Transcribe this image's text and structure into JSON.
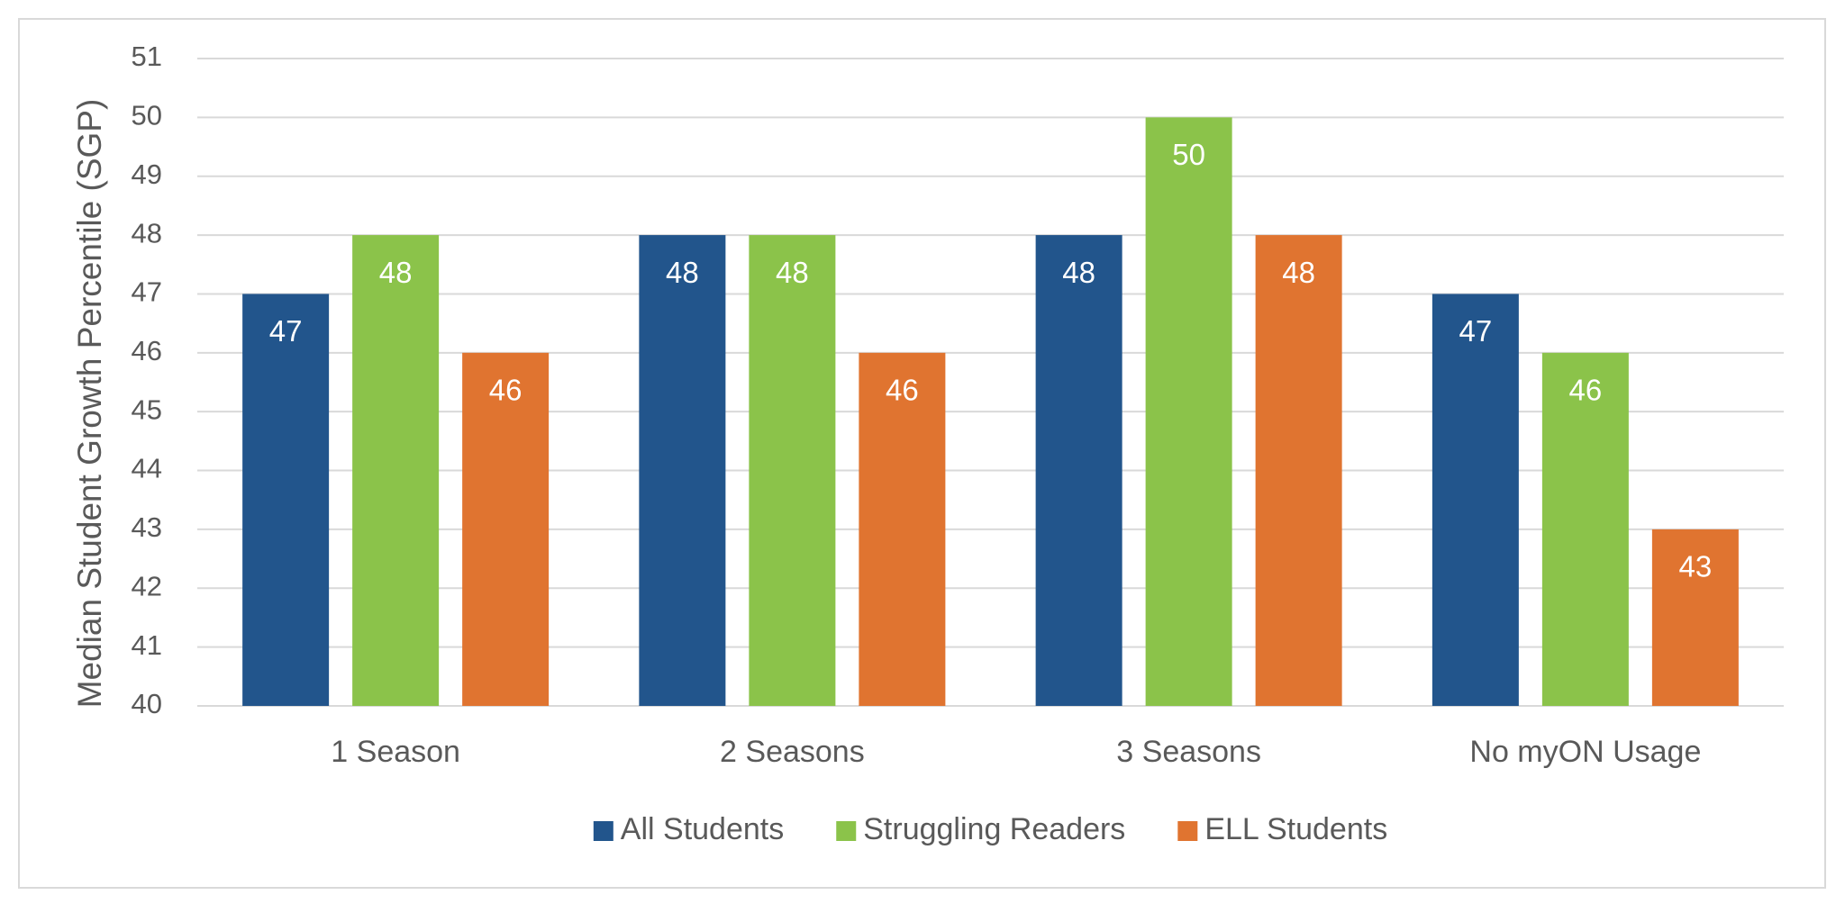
{
  "chart_data": {
    "type": "bar",
    "y_label": "Median Student Growth Percentile (SGP)",
    "categories": [
      "1 Season",
      "2 Seasons",
      "3 Seasons",
      "No myON Usage"
    ],
    "series": [
      {
        "name": "All Students",
        "color": "#22558c",
        "values": [
          47,
          48,
          48,
          47
        ]
      },
      {
        "name": "Struggling Readers",
        "color": "#8bc34a",
        "values": [
          48,
          48,
          50,
          46
        ]
      },
      {
        "name": "ELL Students",
        "color": "#e07430",
        "values": [
          46,
          46,
          48,
          43
        ]
      }
    ],
    "ylim": [
      40,
      51
    ],
    "yticks": [
      40,
      41,
      42,
      43,
      44,
      45,
      46,
      47,
      48,
      49,
      50,
      51
    ],
    "grid": true,
    "legend": "bottom"
  }
}
